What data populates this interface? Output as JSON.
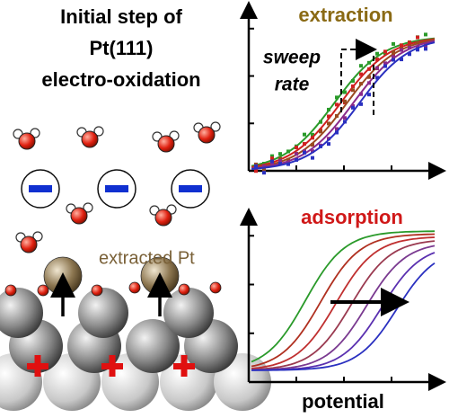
{
  "left_panel": {
    "title_lines": [
      "Initial step of",
      "Pt(111)",
      "electro-oxidation"
    ],
    "label": "extracted Pt"
  },
  "top_plot": {
    "title": "extraction",
    "annotation_lines": [
      "sweep",
      "rate"
    ]
  },
  "bottom_plot": {
    "title": "adsorption"
  },
  "x_axis_label": "potential"
}
